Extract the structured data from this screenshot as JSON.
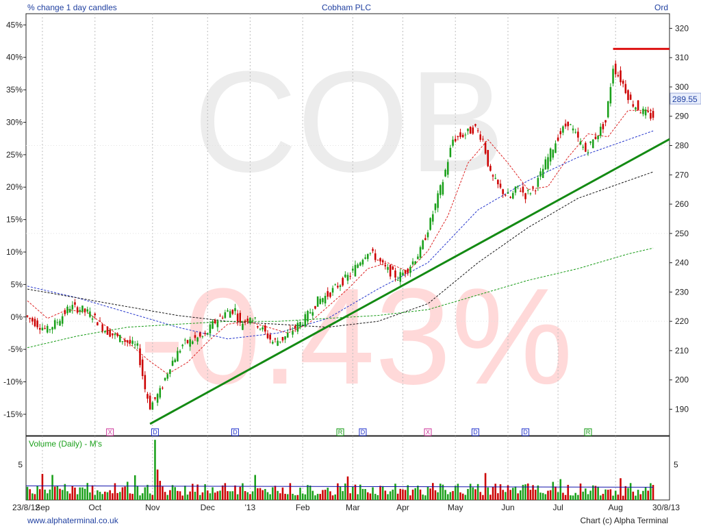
{
  "header": {
    "left_label": "% change 1 day candles",
    "title": "Cobham PLC",
    "right_label": "Ord"
  },
  "watermark": {
    "symbol": "COB",
    "change": "-0.43%"
  },
  "colors": {
    "up": "#1aa01a",
    "down": "#cc0000",
    "trendline": "#138a13",
    "resistance": "#dd1111",
    "ma_short": "#dd2222",
    "ma_mid": "#2233cc",
    "ma_long": "#111111",
    "ma_longest": "#119911",
    "volume_avg": "#1111aa",
    "text_blue": "#1f3fa0"
  },
  "footer": {
    "left": "www.alphaterminal.co.uk",
    "right": "Chart (c) Alpha Terminal"
  },
  "chart_data": {
    "type": "candlestick",
    "title": "Cobham PLC",
    "price_axis": {
      "side": "right",
      "range": [
        181,
        325
      ],
      "ticks": [
        190,
        200,
        210,
        220,
        230,
        240,
        250,
        260,
        270,
        280,
        290,
        300,
        310,
        320
      ]
    },
    "pct_axis": {
      "side": "left",
      "ticks": [
        "45%",
        "40%",
        "35%",
        "30%",
        "25%",
        "20%",
        "15%",
        "10%",
        "5%",
        "0%",
        "-5%",
        "-10%",
        "-15%"
      ],
      "values": [
        45,
        40,
        35,
        30,
        25,
        20,
        15,
        10,
        5,
        0,
        -5,
        -10,
        -15
      ]
    },
    "x_axis": {
      "start_label": "23/8/12",
      "end_label": "30/8/13",
      "months": [
        "Sep",
        "Oct",
        "Nov",
        "Dec",
        "'13",
        "Feb",
        "Mar",
        "Apr",
        "May",
        "Jun",
        "Jul",
        "Aug"
      ]
    },
    "last_price": "289.55",
    "price_path": [
      [
        0,
        222
      ],
      [
        5,
        219
      ],
      [
        9,
        217
      ],
      [
        13,
        220
      ],
      [
        18,
        225
      ],
      [
        23,
        224
      ],
      [
        27,
        222
      ],
      [
        32,
        217
      ],
      [
        36,
        215
      ],
      [
        41,
        213
      ],
      [
        45,
        211
      ],
      [
        48,
        197
      ],
      [
        50,
        191
      ],
      [
        54,
        196
      ],
      [
        58,
        205
      ],
      [
        63,
        212
      ],
      [
        68,
        214
      ],
      [
        72,
        215
      ],
      [
        75,
        219
      ],
      [
        80,
        223
      ],
      [
        84,
        224
      ],
      [
        86,
        219
      ],
      [
        90,
        222
      ],
      [
        94,
        218
      ],
      [
        99,
        213
      ],
      [
        103,
        214
      ],
      [
        107,
        217
      ],
      [
        112,
        221
      ],
      [
        117,
        227
      ],
      [
        121,
        229
      ],
      [
        126,
        233
      ],
      [
        130,
        236
      ],
      [
        135,
        242
      ],
      [
        137,
        244
      ],
      [
        140,
        242
      ],
      [
        144,
        238
      ],
      [
        149,
        235
      ],
      [
        153,
        238
      ],
      [
        158,
        244
      ],
      [
        162,
        254
      ],
      [
        167,
        268
      ],
      [
        171,
        282
      ],
      [
        176,
        284
      ],
      [
        180,
        286
      ],
      [
        183,
        282
      ],
      [
        186,
        270
      ],
      [
        190,
        265
      ],
      [
        194,
        262
      ],
      [
        197,
        266
      ],
      [
        200,
        263
      ],
      [
        204,
        266
      ],
      [
        208,
        274
      ],
      [
        213,
        283
      ],
      [
        217,
        288
      ],
      [
        221,
        282
      ],
      [
        224,
        278
      ],
      [
        228,
        283
      ],
      [
        232,
        288
      ],
      [
        235,
        307
      ],
      [
        239,
        301
      ],
      [
        242,
        295
      ],
      [
        246,
        292
      ],
      [
        250,
        290
      ]
    ],
    "resistance_level": 313,
    "resistance_from_day": 234,
    "trendline": {
      "from": [
        49,
        185
      ],
      "to": [
        260,
        286
      ]
    },
    "moving_averages": [
      {
        "color_key": "ma_short",
        "points": [
          [
            0,
            227
          ],
          [
            8,
            221
          ],
          [
            16,
            224
          ],
          [
            24,
            223
          ],
          [
            32,
            218
          ],
          [
            40,
            213
          ],
          [
            48,
            207
          ],
          [
            56,
            202
          ],
          [
            64,
            206
          ],
          [
            72,
            213
          ],
          [
            80,
            219
          ],
          [
            88,
            220
          ],
          [
            96,
            218
          ],
          [
            104,
            216
          ],
          [
            112,
            219
          ],
          [
            120,
            225
          ],
          [
            128,
            231
          ],
          [
            136,
            238
          ],
          [
            144,
            240
          ],
          [
            152,
            237
          ],
          [
            160,
            244
          ],
          [
            168,
            256
          ],
          [
            176,
            274
          ],
          [
            184,
            282
          ],
          [
            192,
            274
          ],
          [
            200,
            265
          ],
          [
            208,
            266
          ],
          [
            216,
            276
          ],
          [
            224,
            284
          ],
          [
            232,
            283
          ],
          [
            240,
            292
          ],
          [
            250,
            292
          ]
        ]
      },
      {
        "color_key": "ma_mid",
        "points": [
          [
            0,
            232
          ],
          [
            20,
            228
          ],
          [
            40,
            223
          ],
          [
            60,
            218
          ],
          [
            80,
            214
          ],
          [
            100,
            216
          ],
          [
            120,
            221
          ],
          [
            140,
            231
          ],
          [
            160,
            240
          ],
          [
            180,
            258
          ],
          [
            200,
            268
          ],
          [
            220,
            276
          ],
          [
            240,
            282
          ],
          [
            250,
            285
          ]
        ]
      },
      {
        "color_key": "ma_long",
        "points": [
          [
            0,
            231
          ],
          [
            20,
            228
          ],
          [
            40,
            225
          ],
          [
            60,
            222
          ],
          [
            80,
            220
          ],
          [
            100,
            219
          ],
          [
            120,
            218
          ],
          [
            140,
            220
          ],
          [
            160,
            226
          ],
          [
            180,
            240
          ],
          [
            200,
            252
          ],
          [
            220,
            262
          ],
          [
            240,
            268
          ],
          [
            250,
            271
          ]
        ]
      },
      {
        "color_key": "ma_longest",
        "points": [
          [
            0,
            211
          ],
          [
            20,
            215
          ],
          [
            40,
            218
          ],
          [
            60,
            219
          ],
          [
            80,
            220
          ],
          [
            100,
            220
          ],
          [
            120,
            221
          ],
          [
            140,
            222
          ],
          [
            160,
            224
          ],
          [
            180,
            229
          ],
          [
            200,
            234
          ],
          [
            220,
            238
          ],
          [
            240,
            243
          ],
          [
            250,
            245
          ]
        ]
      }
    ],
    "event_markers": [
      {
        "day": 33,
        "label": "X"
      },
      {
        "day": 51,
        "label": "D"
      },
      {
        "day": 83,
        "label": "D"
      },
      {
        "day": 125,
        "label": "R"
      },
      {
        "day": 134,
        "label": "D"
      },
      {
        "day": 160,
        "label": "X"
      },
      {
        "day": 179,
        "label": "D"
      },
      {
        "day": 199,
        "label": "D"
      },
      {
        "day": 224,
        "label": "R"
      }
    ],
    "volume": {
      "label": "Volume (Daily) - M's",
      "ticks": [
        5
      ],
      "range": [
        0,
        9
      ],
      "spike": {
        "day": 51,
        "value": 8.5
      },
      "average": 2.0
    }
  }
}
